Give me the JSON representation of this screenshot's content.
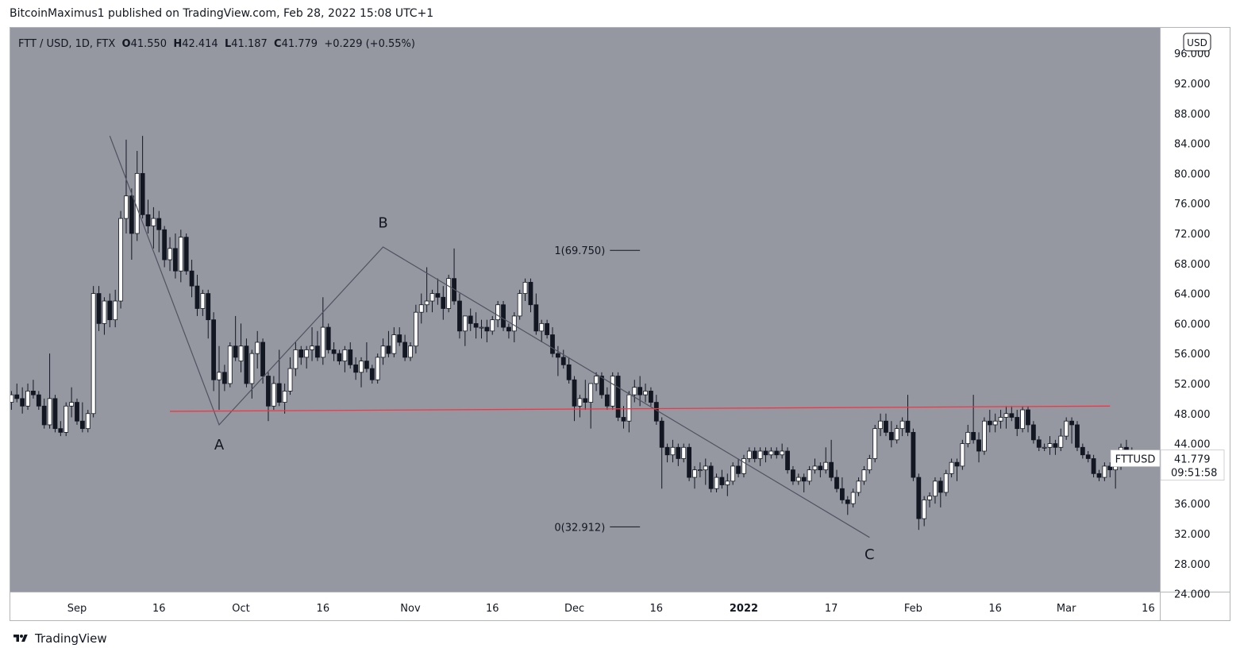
{
  "header": {
    "text": "BitcoinMaximus1 published on TradingView.com, Feb 28, 2022 15:08 UTC+1"
  },
  "footer": {
    "brand": "TradingView"
  },
  "colors": {
    "plot_bg": "#9598a1",
    "axis_bg": "#ffffff",
    "up": "#ffffff",
    "down": "#131722",
    "wick": "#131722",
    "trendline": "#505360",
    "support": "#f23645",
    "text": "#131722",
    "label_box": "#ffffff"
  },
  "chart_data": {
    "type": "candlestick",
    "symbol_line": {
      "name": "FTT / USD, 1D, FTX",
      "open_label": "O",
      "open": "41.550",
      "high_label": "H",
      "high": "42.414",
      "low_label": "L",
      "low": "41.187",
      "close_label": "C",
      "close": "41.779",
      "change": "+0.229 (+0.55%)"
    },
    "currency_button": "USD",
    "price_axis_ticks": [
      "96.000",
      "92.000",
      "88.000",
      "84.000",
      "80.000",
      "76.000",
      "72.000",
      "68.000",
      "64.000",
      "60.000",
      "56.000",
      "52.000",
      "48.000",
      "44.000",
      "40.000",
      "36.000",
      "32.000",
      "28.000",
      "24.000"
    ],
    "price_axis_range": [
      23.0,
      97.5
    ],
    "time_axis_ticks": [
      {
        "label": "Sep",
        "day": 0,
        "bold": false
      },
      {
        "label": "16",
        "day": 15,
        "bold": false
      },
      {
        "label": "Oct",
        "day": 30,
        "bold": false
      },
      {
        "label": "16",
        "day": 45,
        "bold": false
      },
      {
        "label": "Nov",
        "day": 61,
        "bold": false
      },
      {
        "label": "16",
        "day": 76,
        "bold": false
      },
      {
        "label": "Dec",
        "day": 91,
        "bold": false
      },
      {
        "label": "16",
        "day": 106,
        "bold": false
      },
      {
        "label": "2022",
        "day": 122,
        "bold": true
      },
      {
        "label": "17",
        "day": 138,
        "bold": false
      },
      {
        "label": "Feb",
        "day": 153,
        "bold": false
      },
      {
        "label": "16",
        "day": 168,
        "bold": false
      },
      {
        "label": "Mar",
        "day": 181,
        "bold": false
      },
      {
        "label": "16",
        "day": 196,
        "bold": false
      }
    ],
    "first_candle_day": -12,
    "candles": [
      [
        49.5,
        51.0,
        48.5,
        50.5
      ],
      [
        50.5,
        52.0,
        49.5,
        50.0
      ],
      [
        50.0,
        51.5,
        48.0,
        49.0
      ],
      [
        49.0,
        52.0,
        48.5,
        51.0
      ],
      [
        51.0,
        52.5,
        50.0,
        50.5
      ],
      [
        50.5,
        51.0,
        48.5,
        49.0
      ],
      [
        49.0,
        50.0,
        46.0,
        46.5
      ],
      [
        46.5,
        56.0,
        46.0,
        50.0
      ],
      [
        50.0,
        50.5,
        45.5,
        46.0
      ],
      [
        46.0,
        47.0,
        45.0,
        45.5
      ],
      [
        45.5,
        49.5,
        45.0,
        49.0
      ],
      [
        49.0,
        51.5,
        47.5,
        49.5
      ],
      [
        49.5,
        50.0,
        46.5,
        47.0
      ],
      [
        47.0,
        49.5,
        45.5,
        46.0
      ],
      [
        46.0,
        48.5,
        45.5,
        48.0
      ],
      [
        48.0,
        65.0,
        47.5,
        64.0
      ],
      [
        64.0,
        65.0,
        59.0,
        60.0
      ],
      [
        60.0,
        63.5,
        58.5,
        63.0
      ],
      [
        63.0,
        64.0,
        59.5,
        60.5
      ],
      [
        60.5,
        64.5,
        59.5,
        63.0
      ],
      [
        63.0,
        75.0,
        62.0,
        74.0
      ],
      [
        74.0,
        84.5,
        72.0,
        77.0
      ],
      [
        77.0,
        78.0,
        68.5,
        72.0
      ],
      [
        72.0,
        83.0,
        71.0,
        80.0
      ],
      [
        80.0,
        85.0,
        74.0,
        74.5
      ],
      [
        74.5,
        76.5,
        72.0,
        73.0
      ],
      [
        73.0,
        75.5,
        70.0,
        74.0
      ],
      [
        74.0,
        75.0,
        69.5,
        72.5
      ],
      [
        72.5,
        73.0,
        67.5,
        68.5
      ],
      [
        68.5,
        71.5,
        67.0,
        70.0
      ],
      [
        70.0,
        72.0,
        66.0,
        67.0
      ],
      [
        67.0,
        72.5,
        65.5,
        71.5
      ],
      [
        71.5,
        72.0,
        66.5,
        67.0
      ],
      [
        67.0,
        68.5,
        63.5,
        65.0
      ],
      [
        65.0,
        66.5,
        61.0,
        62.0
      ],
      [
        62.0,
        64.5,
        61.0,
        64.0
      ],
      [
        64.0,
        64.5,
        58.0,
        60.5
      ],
      [
        60.5,
        61.5,
        51.0,
        52.5
      ],
      [
        52.5,
        57.0,
        48.5,
        53.5
      ],
      [
        53.5,
        54.5,
        51.0,
        52.0
      ],
      [
        52.0,
        57.5,
        51.5,
        57.0
      ],
      [
        57.0,
        61.0,
        55.0,
        55.5
      ],
      [
        55.0,
        60.0,
        53.5,
        57.0
      ],
      [
        57.0,
        58.0,
        51.5,
        52.0
      ],
      [
        52.0,
        56.5,
        50.0,
        56.0
      ],
      [
        56.0,
        59.0,
        54.0,
        57.5
      ],
      [
        57.5,
        58.0,
        52.0,
        53.0
      ],
      [
        53.0,
        53.5,
        47.0,
        49.0
      ],
      [
        49.0,
        53.0,
        48.5,
        52.0
      ],
      [
        52.0,
        56.5,
        49.0,
        49.5
      ],
      [
        49.5,
        52.0,
        48.0,
        51.0
      ],
      [
        51.0,
        55.5,
        50.5,
        54.0
      ],
      [
        54.0,
        57.5,
        53.0,
        56.5
      ],
      [
        56.5,
        57.0,
        54.5,
        55.5
      ],
      [
        55.5,
        57.0,
        54.0,
        56.5
      ],
      [
        56.5,
        59.5,
        55.0,
        57.0
      ],
      [
        57.0,
        59.0,
        55.0,
        55.5
      ],
      [
        55.5,
        63.5,
        54.5,
        59.5
      ],
      [
        59.5,
        60.0,
        56.0,
        56.5
      ],
      [
        56.5,
        57.5,
        55.0,
        56.0
      ],
      [
        56.0,
        56.5,
        54.5,
        55.0
      ],
      [
        55.0,
        57.0,
        53.5,
        56.5
      ],
      [
        56.5,
        57.5,
        54.0,
        54.5
      ],
      [
        54.5,
        55.5,
        52.5,
        53.5
      ],
      [
        53.5,
        55.5,
        51.5,
        55.0
      ],
      [
        55.0,
        57.5,
        53.5,
        54.0
      ],
      [
        54.0,
        54.5,
        52.0,
        52.5
      ],
      [
        52.5,
        56.0,
        52.0,
        55.5
      ],
      [
        55.5,
        58.0,
        54.5,
        57.0
      ],
      [
        57.0,
        59.0,
        55.5,
        56.0
      ],
      [
        56.0,
        59.5,
        55.5,
        58.5
      ],
      [
        58.5,
        59.5,
        57.0,
        57.5
      ],
      [
        57.5,
        58.5,
        55.0,
        55.5
      ],
      [
        55.5,
        57.5,
        55.0,
        57.0
      ],
      [
        57.0,
        62.5,
        56.0,
        61.5
      ],
      [
        61.5,
        64.0,
        60.0,
        62.5
      ],
      [
        62.5,
        67.5,
        61.5,
        63.0
      ],
      [
        63.0,
        64.5,
        61.5,
        64.0
      ],
      [
        64.0,
        66.0,
        62.5,
        63.5
      ],
      [
        63.5,
        65.0,
        60.5,
        62.0
      ],
      [
        62.0,
        66.5,
        61.5,
        66.0
      ],
      [
        66.0,
        70.0,
        62.5,
        63.0
      ],
      [
        63.0,
        64.0,
        58.0,
        59.0
      ],
      [
        59.0,
        61.0,
        57.0,
        61.0
      ],
      [
        61.0,
        62.0,
        59.0,
        60.0
      ],
      [
        60.0,
        61.5,
        58.0,
        59.5
      ],
      [
        59.5,
        60.5,
        58.0,
        59.5
      ],
      [
        59.5,
        60.5,
        57.5,
        59.0
      ],
      [
        59.0,
        61.0,
        58.5,
        60.5
      ],
      [
        60.5,
        63.0,
        59.5,
        62.5
      ],
      [
        62.5,
        63.0,
        59.0,
        59.5
      ],
      [
        59.5,
        60.0,
        58.0,
        59.0
      ],
      [
        59.0,
        61.5,
        57.5,
        61.0
      ],
      [
        61.0,
        64.5,
        60.5,
        64.0
      ],
      [
        64.0,
        66.0,
        63.0,
        65.5
      ],
      [
        65.5,
        66.0,
        61.5,
        62.5
      ],
      [
        62.5,
        64.0,
        58.5,
        59.0
      ],
      [
        59.0,
        60.5,
        57.5,
        60.0
      ],
      [
        60.0,
        60.5,
        58.0,
        58.5
      ],
      [
        58.5,
        59.5,
        55.5,
        56.0
      ],
      [
        56.0,
        57.0,
        53.0,
        55.5
      ],
      [
        55.5,
        56.5,
        54.0,
        54.5
      ],
      [
        54.5,
        55.5,
        52.0,
        52.5
      ],
      [
        52.5,
        53.0,
        47.0,
        49.0
      ],
      [
        49.0,
        50.5,
        47.5,
        50.0
      ],
      [
        50.0,
        52.5,
        48.5,
        49.5
      ],
      [
        49.5,
        52.0,
        46.0,
        52.0
      ],
      [
        52.0,
        53.5,
        51.0,
        53.0
      ],
      [
        53.0,
        53.5,
        50.0,
        50.5
      ],
      [
        50.5,
        51.5,
        48.5,
        49.0
      ],
      [
        49.0,
        53.5,
        48.5,
        53.0
      ],
      [
        53.0,
        53.5,
        47.0,
        47.5
      ],
      [
        47.5,
        49.0,
        46.0,
        47.0
      ],
      [
        47.0,
        51.0,
        45.5,
        50.5
      ],
      [
        50.5,
        52.5,
        49.5,
        51.5
      ],
      [
        51.5,
        53.0,
        49.0,
        50.5
      ],
      [
        50.5,
        52.0,
        49.5,
        51.0
      ],
      [
        51.0,
        51.5,
        49.0,
        49.5
      ],
      [
        49.5,
        50.5,
        46.5,
        47.0
      ],
      [
        47.0,
        47.5,
        38.0,
        43.5
      ],
      [
        43.5,
        44.0,
        41.5,
        42.5
      ],
      [
        42.5,
        44.5,
        41.5,
        43.5
      ],
      [
        43.5,
        44.0,
        41.0,
        42.0
      ],
      [
        42.0,
        44.0,
        41.5,
        43.5
      ],
      [
        43.5,
        44.0,
        39.0,
        39.5
      ],
      [
        39.5,
        41.0,
        38.0,
        40.5
      ],
      [
        40.5,
        41.5,
        39.5,
        40.5
      ],
      [
        40.5,
        42.0,
        38.5,
        41.0
      ],
      [
        41.0,
        41.5,
        37.5,
        38.0
      ],
      [
        38.0,
        40.0,
        37.5,
        39.5
      ],
      [
        39.5,
        40.5,
        38.0,
        38.5
      ],
      [
        38.5,
        40.0,
        37.0,
        39.0
      ],
      [
        39.0,
        41.5,
        38.5,
        41.0
      ],
      [
        41.0,
        42.0,
        39.5,
        40.0
      ],
      [
        40.0,
        42.5,
        39.5,
        42.0
      ],
      [
        42.0,
        43.5,
        41.5,
        43.0
      ],
      [
        43.0,
        43.5,
        41.5,
        42.0
      ],
      [
        42.0,
        43.5,
        41.0,
        43.0
      ],
      [
        43.0,
        43.5,
        41.5,
        42.5
      ],
      [
        42.5,
        43.5,
        42.0,
        43.0
      ],
      [
        43.0,
        43.5,
        42.0,
        42.5
      ],
      [
        42.5,
        44.0,
        42.0,
        43.0
      ],
      [
        43.0,
        43.5,
        40.0,
        40.5
      ],
      [
        40.5,
        41.0,
        38.5,
        39.0
      ],
      [
        39.0,
        40.0,
        38.5,
        39.5
      ],
      [
        39.5,
        40.0,
        37.5,
        39.0
      ],
      [
        39.0,
        41.0,
        38.5,
        40.5
      ],
      [
        40.5,
        42.0,
        40.0,
        41.0
      ],
      [
        41.0,
        41.5,
        39.5,
        40.5
      ],
      [
        40.5,
        43.5,
        40.0,
        41.5
      ],
      [
        41.5,
        44.5,
        39.0,
        39.5
      ],
      [
        39.5,
        40.5,
        37.5,
        38.0
      ],
      [
        38.0,
        39.5,
        36.0,
        36.5
      ],
      [
        36.5,
        37.0,
        34.5,
        36.0
      ],
      [
        36.0,
        38.0,
        35.5,
        37.5
      ],
      [
        37.5,
        39.5,
        37.0,
        39.0
      ],
      [
        39.0,
        41.0,
        38.5,
        40.5
      ],
      [
        40.5,
        42.5,
        40.0,
        42.0
      ],
      [
        42.0,
        46.5,
        41.5,
        46.0
      ],
      [
        46.0,
        48.0,
        45.0,
        47.0
      ],
      [
        47.0,
        48.0,
        45.0,
        45.5
      ],
      [
        45.5,
        47.0,
        43.5,
        44.5
      ],
      [
        44.5,
        46.5,
        44.0,
        46.0
      ],
      [
        46.0,
        47.5,
        45.0,
        47.0
      ],
      [
        47.0,
        50.5,
        45.0,
        45.5
      ],
      [
        45.5,
        46.0,
        39.0,
        39.5
      ],
      [
        39.5,
        40.0,
        32.5,
        34.0
      ],
      [
        34.0,
        37.0,
        33.0,
        36.5
      ],
      [
        36.5,
        37.5,
        35.5,
        37.0
      ],
      [
        37.0,
        39.5,
        36.0,
        39.0
      ],
      [
        39.0,
        39.5,
        35.5,
        37.5
      ],
      [
        37.5,
        40.5,
        37.0,
        40.0
      ],
      [
        40.0,
        42.0,
        39.5,
        41.5
      ],
      [
        41.5,
        42.0,
        39.0,
        41.0
      ],
      [
        41.0,
        44.5,
        40.5,
        44.0
      ],
      [
        44.0,
        46.5,
        43.5,
        45.5
      ],
      [
        45.5,
        50.5,
        44.0,
        44.5
      ],
      [
        44.5,
        45.5,
        41.5,
        43.0
      ],
      [
        43.0,
        47.5,
        42.5,
        47.0
      ],
      [
        47.0,
        48.5,
        45.5,
        46.5
      ],
      [
        46.5,
        48.0,
        45.5,
        47.0
      ],
      [
        47.0,
        48.5,
        46.0,
        47.5
      ],
      [
        47.5,
        49.0,
        46.0,
        48.0
      ],
      [
        48.0,
        49.0,
        47.0,
        47.5
      ],
      [
        47.5,
        48.5,
        45.0,
        46.0
      ],
      [
        46.0,
        49.0,
        45.5,
        48.5
      ],
      [
        48.5,
        49.0,
        45.5,
        46.5
      ],
      [
        46.5,
        47.0,
        44.0,
        44.5
      ],
      [
        44.5,
        45.0,
        43.0,
        43.5
      ],
      [
        43.5,
        44.0,
        43.0,
        43.5
      ],
      [
        43.5,
        45.0,
        42.5,
        44.0
      ],
      [
        44.0,
        44.5,
        42.5,
        43.5
      ],
      [
        43.5,
        46.0,
        43.0,
        45.0
      ],
      [
        45.0,
        47.5,
        44.5,
        47.0
      ],
      [
        47.0,
        47.5,
        44.0,
        46.5
      ],
      [
        46.5,
        47.0,
        43.0,
        43.5
      ],
      [
        43.5,
        44.0,
        42.0,
        42.5
      ],
      [
        42.5,
        43.0,
        41.5,
        42.0
      ],
      [
        42.0,
        42.5,
        39.5,
        40.0
      ],
      [
        40.0,
        40.5,
        39.0,
        39.5
      ],
      [
        39.5,
        41.5,
        39.0,
        41.0
      ],
      [
        41.0,
        41.5,
        39.5,
        40.5
      ],
      [
        40.5,
        41.5,
        38.0,
        41.0
      ],
      [
        41.0,
        44.0,
        40.5,
        43.5
      ],
      [
        43.5,
        44.5,
        42.5,
        43.0
      ],
      [
        43.0,
        43.5,
        41.0,
        41.5
      ],
      [
        41.5,
        42.4,
        41.2,
        41.8
      ]
    ],
    "drawings": {
      "abc_points": [
        {
          "day": 6,
          "price": 85.0
        },
        {
          "day": 26,
          "price": 46.5
        },
        {
          "day": 56,
          "price": 70.2
        },
        {
          "day": 145,
          "price": 31.5
        }
      ],
      "support_line": {
        "day_start": 17,
        "day_end": 189,
        "price_start": 48.3,
        "price_end": 49.0
      },
      "labels": [
        {
          "text": "A",
          "day": 26,
          "price": 43.2
        },
        {
          "text": "B",
          "day": 56,
          "price": 72.8
        },
        {
          "text": "C",
          "day": 145,
          "price": 28.6
        }
      ],
      "fib_levels": [
        {
          "text": "1(69.750)",
          "price": 69.75,
          "day_start": 97.5,
          "day_end": 103
        },
        {
          "text": "0(32.912)",
          "price": 32.912,
          "day_start": 97.5,
          "day_end": 103
        }
      ]
    },
    "last_price_label": {
      "symbol": "FTTUSD",
      "price": "41.779",
      "countdown": "09:51:58"
    }
  }
}
